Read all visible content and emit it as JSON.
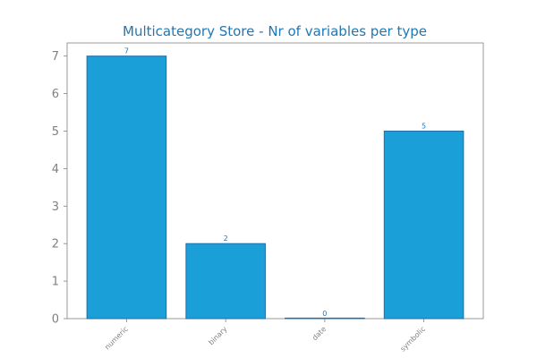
{
  "chart_data": {
    "type": "bar",
    "title": "Multicategory Store - Nr of variables per type",
    "xlabel": "",
    "ylabel": "",
    "categories": [
      "numeric",
      "binary",
      "date",
      "symbolic"
    ],
    "values": [
      7,
      2,
      0,
      5
    ],
    "ylim": [
      0,
      7.35
    ],
    "yticks": [
      0,
      1,
      2,
      3,
      4,
      5,
      6,
      7
    ],
    "grid": false,
    "legend": "none",
    "colors": {
      "bar_fill": "#1a9fd9",
      "bar_edge": "#1f6ea8",
      "title": "#1f77b4",
      "data_label": "#1f77b4",
      "tick_label": "#808080",
      "axis": "#808080"
    }
  }
}
